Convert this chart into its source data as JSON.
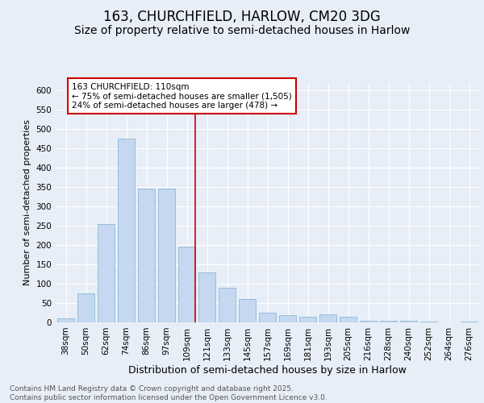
{
  "title1": "163, CHURCHFIELD, HARLOW, CM20 3DG",
  "title2": "Size of property relative to semi-detached houses in Harlow",
  "xlabel": "Distribution of semi-detached houses by size in Harlow",
  "ylabel": "Number of semi-detached properties",
  "categories": [
    "38sqm",
    "50sqm",
    "62sqm",
    "74sqm",
    "86sqm",
    "97sqm",
    "109sqm",
    "121sqm",
    "133sqm",
    "145sqm",
    "157sqm",
    "169sqm",
    "181sqm",
    "193sqm",
    "205sqm",
    "216sqm",
    "228sqm",
    "240sqm",
    "252sqm",
    "264sqm",
    "276sqm"
  ],
  "values": [
    10,
    75,
    255,
    475,
    345,
    345,
    195,
    130,
    90,
    60,
    25,
    18,
    15,
    20,
    15,
    5,
    5,
    5,
    3,
    0,
    3
  ],
  "bar_color": "#c5d8f0",
  "bar_edge_color": "#7bafd4",
  "vline_index": 6,
  "vline_color": "#cc0000",
  "annotation_text": "163 CHURCHFIELD: 110sqm\n← 75% of semi-detached houses are smaller (1,505)\n24% of semi-detached houses are larger (478) →",
  "annotation_box_color": "#ffffff",
  "annotation_box_edge": "#cc0000",
  "ylim": [
    0,
    620
  ],
  "yticks": [
    0,
    50,
    100,
    150,
    200,
    250,
    300,
    350,
    400,
    450,
    500,
    550,
    600
  ],
  "bg_color": "#e8eef7",
  "footer": "Contains HM Land Registry data © Crown copyright and database right 2025.\nContains public sector information licensed under the Open Government Licence v3.0.",
  "title1_fontsize": 12,
  "title2_fontsize": 10,
  "xlabel_fontsize": 9,
  "ylabel_fontsize": 8,
  "tick_fontsize": 7.5,
  "footer_fontsize": 6.5,
  "annot_fontsize": 7.5
}
